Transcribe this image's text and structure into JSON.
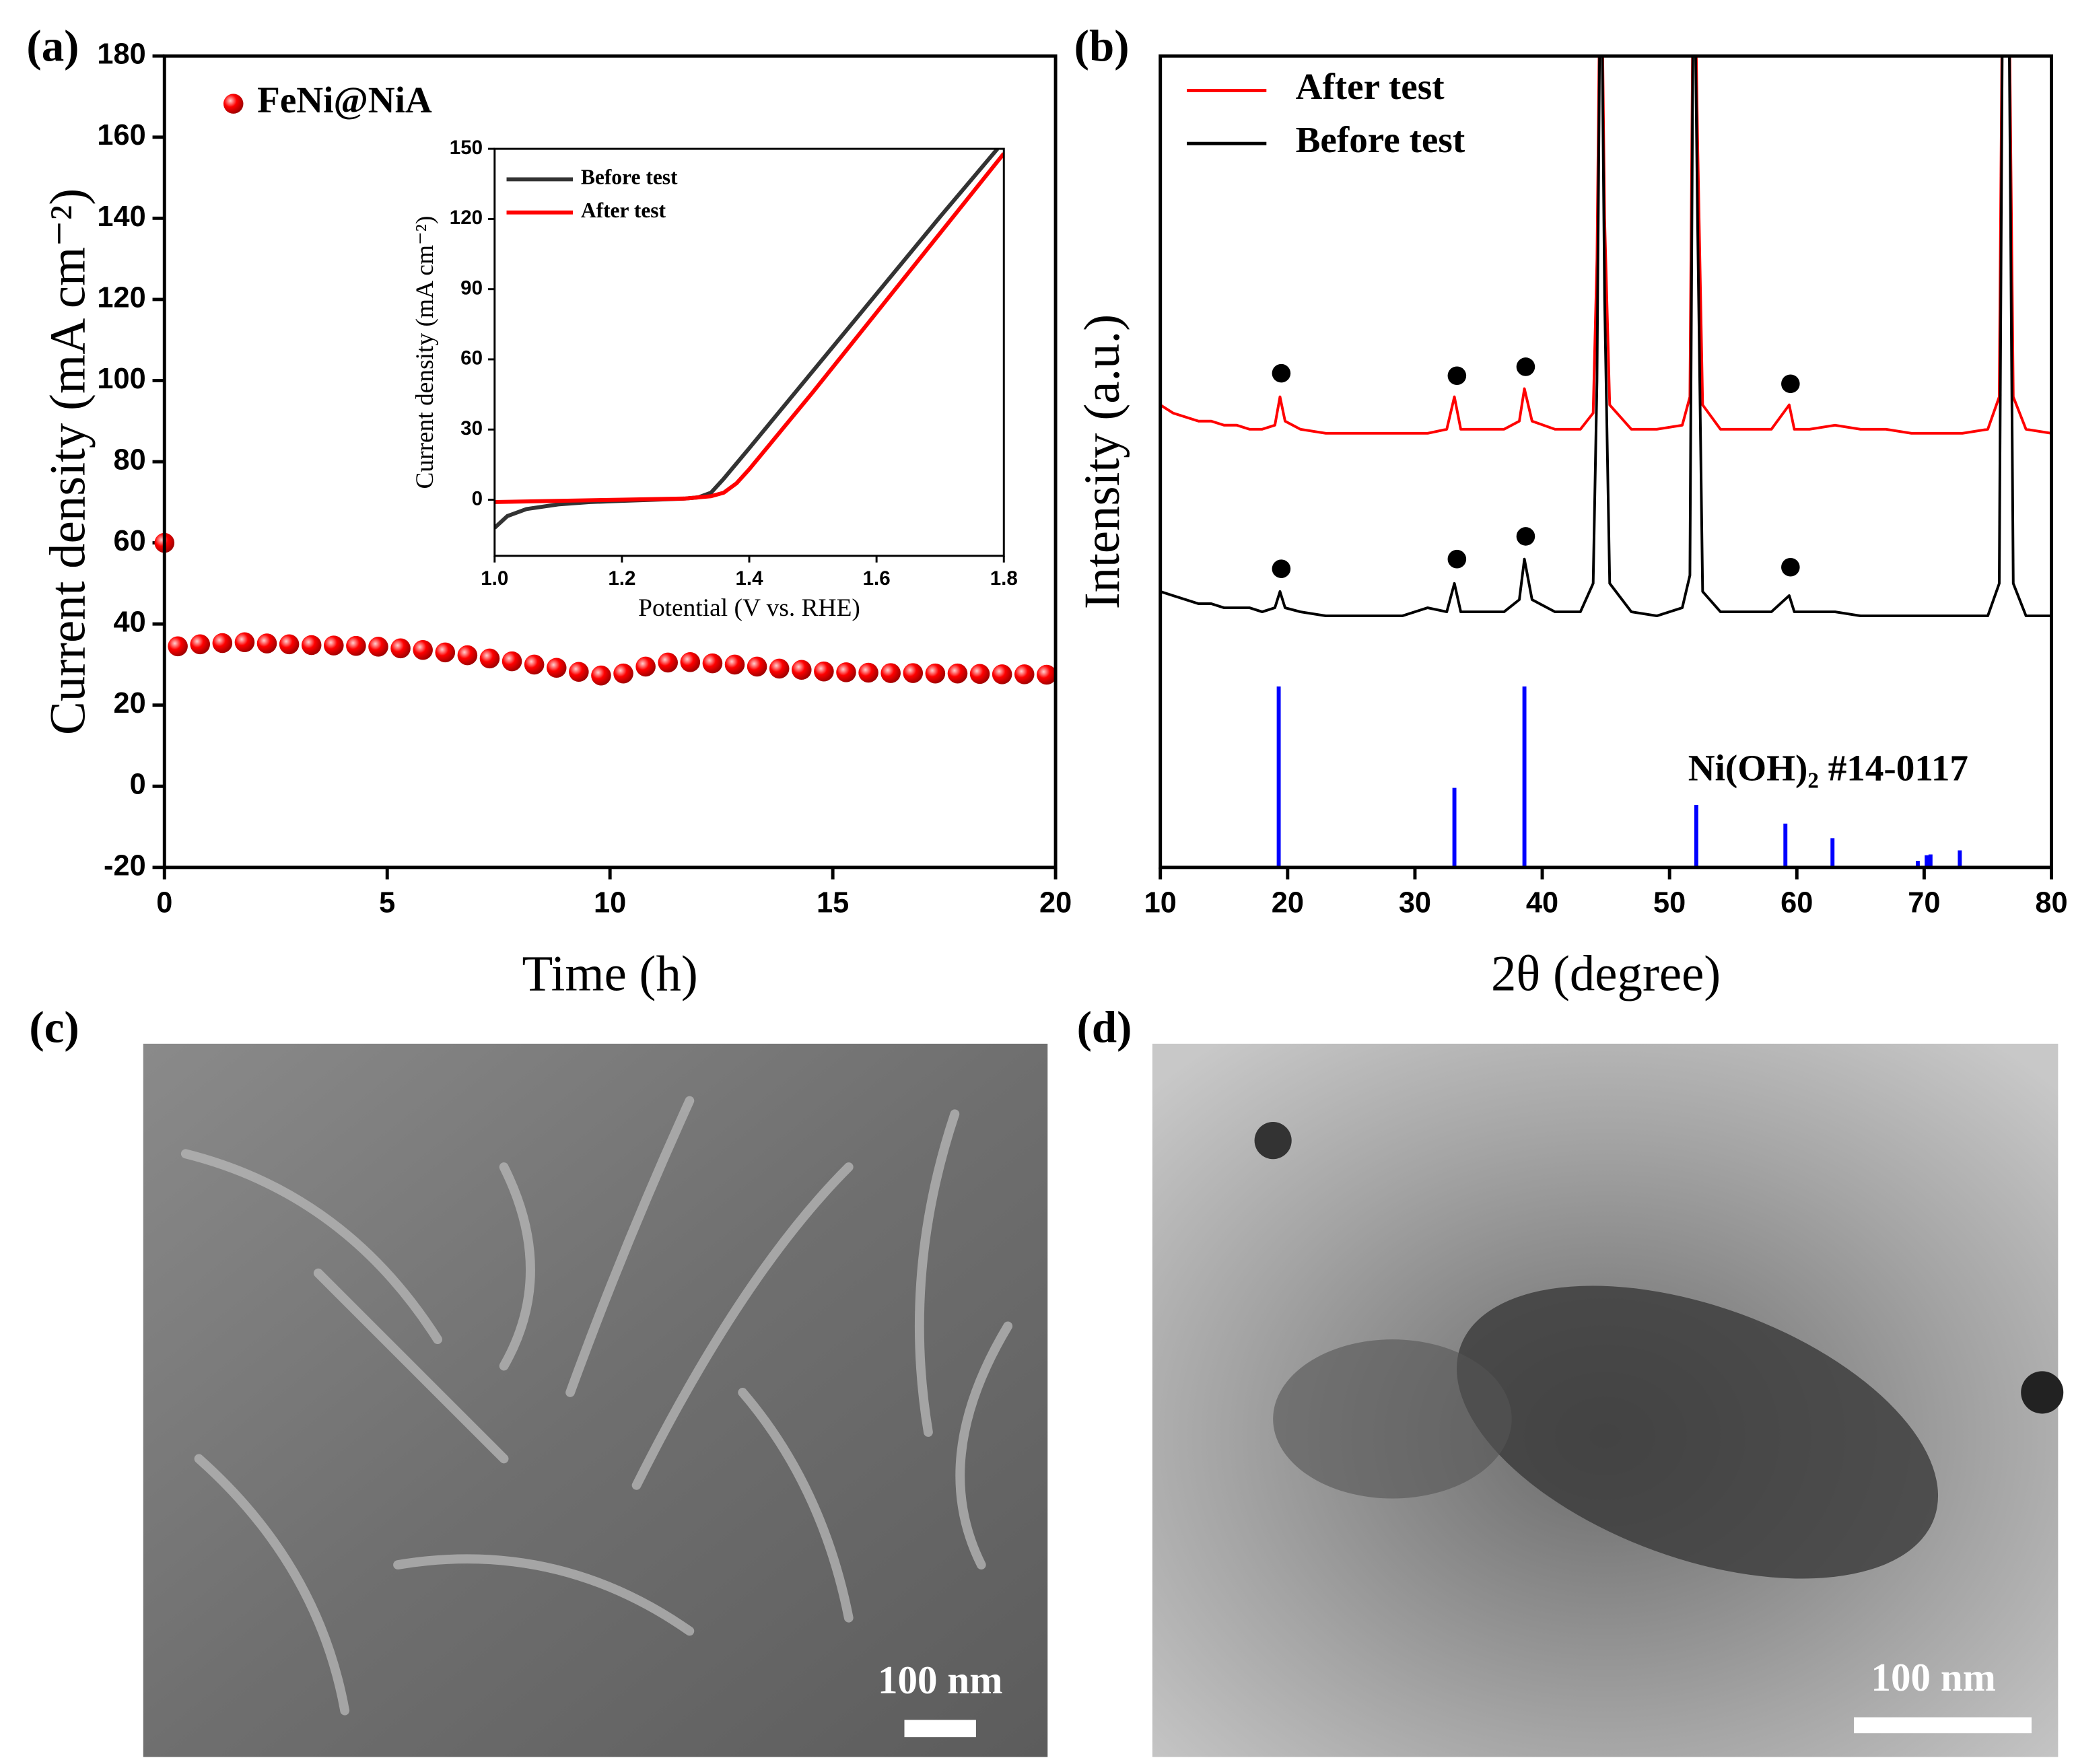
{
  "chart_data": [
    {
      "type": "line",
      "panel_label": "(a)",
      "xlabel": "Time (h)",
      "ylabel": "Current density (mA cm⁻²)",
      "xlim": [
        0,
        20
      ],
      "xticks": [
        0,
        5,
        10,
        15,
        20
      ],
      "ylim": [
        -20,
        180
      ],
      "yticks": [
        -20,
        0,
        20,
        40,
        60,
        80,
        100,
        120,
        140,
        160,
        180
      ],
      "legend": "upper left",
      "series": [
        {
          "name": "FeNi@NiA",
          "color": "#ff0000",
          "marker": "sphere",
          "x": [
            0,
            0.3,
            0.8,
            1.3,
            1.8,
            2.3,
            2.8,
            3.3,
            3.8,
            4.3,
            4.8,
            5.3,
            5.8,
            6.3,
            6.8,
            7.3,
            7.8,
            8.3,
            8.8,
            9.3,
            9.8,
            10.3,
            10.8,
            11.3,
            11.8,
            12.3,
            12.8,
            13.3,
            13.8,
            14.3,
            14.8,
            15.3,
            15.8,
            16.3,
            16.8,
            17.3,
            17.8,
            18.3,
            18.8,
            19.3,
            19.8
          ],
          "values": [
            60,
            34.5,
            35,
            35.3,
            35.5,
            35.2,
            35,
            34.8,
            34.7,
            34.6,
            34.4,
            34,
            33.6,
            33,
            32.3,
            31.5,
            30.8,
            30,
            29.2,
            28.2,
            27.3,
            27.8,
            29.5,
            30.5,
            30.6,
            30.3,
            30,
            29.5,
            29,
            28.7,
            28.3,
            28.1,
            28,
            27.9,
            27.9,
            27.8,
            27.8,
            27.7,
            27.6,
            27.6,
            27.5
          ]
        }
      ]
    },
    {
      "type": "line",
      "panel_label": "(b)",
      "xlabel": "2θ (degree)",
      "ylabel": "Intensity (a.u.)",
      "xlim": [
        10,
        80
      ],
      "xticks": [
        10,
        20,
        30,
        40,
        50,
        60,
        70,
        80
      ],
      "ylim": [
        0,
        100
      ],
      "legend": "upper left",
      "series": [
        {
          "name": "After test",
          "color": "#ff0000",
          "x": [
            10,
            11,
            12,
            13,
            14,
            15,
            16,
            17,
            18,
            19,
            19.4,
            19.8,
            21,
            23,
            25,
            27,
            29,
            31,
            32.5,
            33.1,
            33.6,
            35,
            37,
            38.2,
            38.6,
            39.2,
            41,
            43,
            44,
            44.3,
            44.6,
            44.9,
            45.3,
            47,
            49,
            51,
            51.6,
            51.9,
            52.2,
            52.6,
            54,
            56,
            58,
            59.4,
            59.8,
            61,
            63,
            65,
            67,
            69,
            71,
            73,
            75,
            75.9,
            76.2,
            76.6,
            77,
            78,
            80
          ],
          "values": [
            57,
            56,
            55.5,
            55,
            55,
            54.5,
            54.5,
            54,
            54,
            54.5,
            58,
            55,
            54,
            53.5,
            53.5,
            53.5,
            53.5,
            53.5,
            54,
            58,
            54,
            54,
            54,
            55,
            59,
            55,
            54,
            54,
            56,
            75,
            120,
            80,
            57,
            54,
            54,
            54.5,
            58,
            120,
            90,
            57,
            54,
            54,
            54,
            57,
            54,
            54,
            54.5,
            54,
            54,
            53.5,
            53.5,
            53.5,
            54,
            58,
            120,
            120,
            58,
            54,
            53.5
          ]
        },
        {
          "name": "Before test",
          "color": "#000000",
          "x": [
            10,
            11,
            12,
            13,
            14,
            15,
            16,
            17,
            18,
            19,
            19.4,
            19.8,
            21,
            23,
            25,
            27,
            29,
            31,
            32.5,
            33.1,
            33.6,
            35,
            37,
            38.2,
            38.6,
            39.2,
            41,
            43,
            44,
            44.3,
            44.6,
            44.9,
            45.3,
            47,
            49,
            51,
            51.6,
            51.9,
            52.2,
            52.6,
            54,
            56,
            58,
            59.4,
            59.8,
            61,
            63,
            65,
            67,
            69,
            71,
            73,
            75,
            75.9,
            76.2,
            76.6,
            77,
            78,
            80
          ],
          "values": [
            34,
            33.5,
            33,
            32.5,
            32.5,
            32,
            32,
            32,
            31.5,
            32,
            34,
            32,
            31.5,
            31,
            31,
            31,
            31,
            32,
            31.5,
            35,
            31.5,
            31.5,
            31.5,
            33,
            38,
            33,
            31.5,
            31.5,
            35,
            60,
            120,
            70,
            35,
            31.5,
            31,
            32,
            36,
            120,
            80,
            34,
            31.5,
            31.5,
            31.5,
            33.5,
            31.5,
            31.5,
            31.5,
            31,
            31,
            31,
            31,
            31,
            31,
            35,
            120,
            120,
            35,
            31,
            31
          ]
        },
        {
          "name": "Ni(OH)₂ #14-0117",
          "color": "#0000ff",
          "style": "stick",
          "x": [
            19.3,
            33.1,
            38.6,
            52.1,
            59.1,
            62.8,
            69.5,
            70.2,
            70.5,
            72.8
          ],
          "values": [
            22.3,
            9.8,
            22.3,
            7.7,
            5.4,
            3.6,
            0.8,
            1.5,
            1.6,
            2.1
          ]
        }
      ],
      "peak_markers": [
        {
          "color": "#000000",
          "x": [
            19.5,
            33.3,
            38.7,
            59.5
          ],
          "values": [
            60.9,
            60.6,
            61.7,
            59.6
          ]
        },
        {
          "color": "#000000",
          "x": [
            19.5,
            33.3,
            38.7,
            59.5
          ],
          "values": [
            36.8,
            38,
            40.8,
            37
          ]
        }
      ]
    },
    {
      "type": "line",
      "xlabel": "Potential (V  vs. RHE)",
      "ylabel": "Current density (mA cm⁻²)",
      "xlim": [
        1,
        1.8
      ],
      "xticks": [
        {
          "value": 1,
          "label": "1.0"
        },
        1.2,
        1.4,
        1.6,
        {
          "value": 1.8,
          "label": "1.8"
        }
      ],
      "ylim": [
        -24,
        150
      ],
      "yticks": [
        0,
        30,
        60,
        90,
        120,
        150
      ],
      "legend": "upper left",
      "series": [
        {
          "name": "Before test",
          "color": "#333333",
          "x": [
            1,
            1.02,
            1.05,
            1.1,
            1.15,
            1.2,
            1.25,
            1.3,
            1.32,
            1.34,
            1.36,
            1.4,
            1.5,
            1.6,
            1.7,
            1.79
          ],
          "values": [
            -12,
            -7,
            -4,
            -2,
            -1,
            -0.5,
            0,
            0.5,
            1,
            3,
            9,
            22,
            55,
            88,
            121,
            150
          ]
        },
        {
          "name": "After test",
          "color": "#ff0000",
          "x": [
            1,
            1.1,
            1.2,
            1.3,
            1.34,
            1.36,
            1.38,
            1.4,
            1.5,
            1.6,
            1.7,
            1.8
          ],
          "values": [
            -1,
            -0.5,
            0,
            0.5,
            1.5,
            3,
            7,
            13,
            46,
            80,
            114,
            148
          ]
        }
      ]
    }
  ],
  "panels": [
    {
      "label": "(c)",
      "scale_bar": "100 nm"
    },
    {
      "label": "(d)",
      "scale_bar": "100 nm"
    }
  ]
}
